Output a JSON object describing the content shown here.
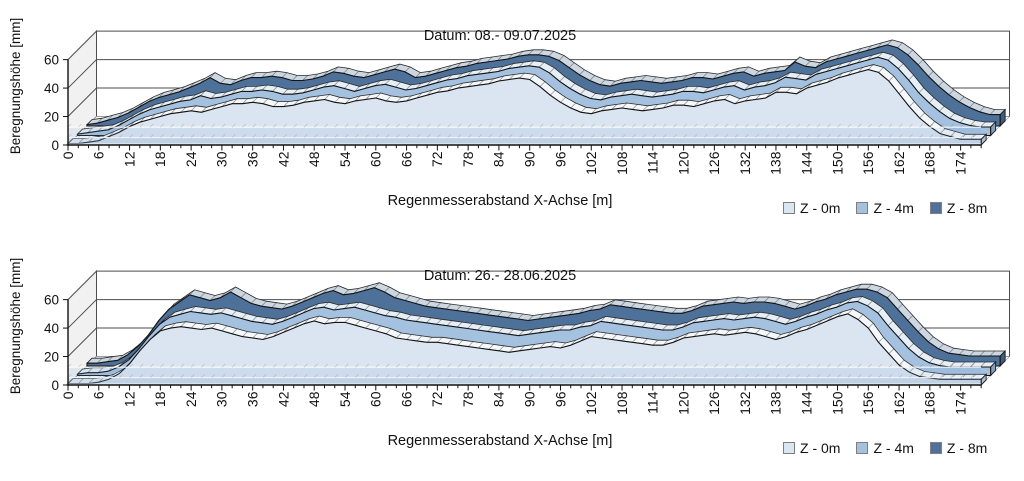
{
  "page": {
    "background": "#ffffff"
  },
  "chart_data": [
    {
      "type": "area",
      "view": "3d-depth",
      "title": "Datum: 08.- 09.07.2025",
      "xlabel": "Regenmesserabstand X-Achse [m]",
      "ylabel": "Beregnungshöhe [mm]",
      "x_start": 0,
      "x_step": 2,
      "x_end": 178,
      "x_tick_step": 6,
      "x_tick_max": 174,
      "y_ticks": [
        0,
        20,
        40,
        60
      ],
      "ylim": [
        0,
        60
      ],
      "grid": "horizontal-major",
      "legend_position": "bottom-right",
      "series": [
        {
          "name": "Z - 0m",
          "color": "#dbe5f1",
          "values": [
            1,
            1,
            2,
            3,
            6,
            9,
            13,
            16,
            18,
            20,
            22,
            23,
            24,
            23,
            25,
            27,
            29,
            29,
            30,
            29,
            27,
            27,
            28,
            30,
            31,
            32,
            30,
            29,
            31,
            32,
            33,
            31,
            30,
            31,
            33,
            35,
            37,
            38,
            40,
            41,
            42,
            43,
            45,
            46,
            47,
            46,
            41,
            35,
            30,
            26,
            23,
            22,
            24,
            25,
            26,
            25,
            24,
            25,
            26,
            28,
            28,
            27,
            29,
            31,
            32,
            29,
            31,
            32,
            33,
            37,
            37,
            36,
            40,
            42,
            44,
            47,
            49,
            51,
            53,
            51,
            45,
            36,
            27,
            19,
            13,
            8,
            6,
            4,
            4,
            4
          ]
        },
        {
          "name": "Z - 4m",
          "color": "#a4c2e0",
          "values": [
            1,
            2,
            3,
            4,
            7,
            11,
            15,
            18,
            20,
            22,
            24,
            25,
            28,
            26,
            27,
            29,
            31,
            31,
            32,
            31,
            29,
            29,
            30,
            32,
            34,
            35,
            33,
            31,
            33,
            35,
            36,
            34,
            32,
            33,
            35,
            37,
            39,
            40,
            42,
            43,
            44,
            45,
            47,
            48,
            49,
            48,
            44,
            38,
            33,
            29,
            26,
            25,
            27,
            28,
            29,
            28,
            27,
            28,
            29,
            31,
            31,
            30,
            32,
            34,
            35,
            32,
            34,
            35,
            37,
            41,
            40,
            39,
            43,
            45,
            47,
            49,
            51,
            53,
            55,
            53,
            47,
            39,
            30,
            23,
            17,
            12,
            9,
            7,
            6,
            6
          ]
        },
        {
          "name": "Z - 8m",
          "color": "#4d7199",
          "values": [
            1,
            2,
            4,
            6,
            9,
            13,
            17,
            20,
            22,
            24,
            27,
            30,
            34,
            30,
            29,
            32,
            34,
            34,
            35,
            34,
            32,
            32,
            33,
            35,
            38,
            37,
            35,
            34,
            36,
            38,
            40,
            38,
            34,
            35,
            37,
            39,
            41,
            42,
            44,
            45,
            46,
            47,
            49,
            50,
            50,
            49,
            46,
            41,
            36,
            32,
            29,
            28,
            30,
            31,
            32,
            31,
            30,
            31,
            32,
            34,
            34,
            33,
            35,
            37,
            38,
            35,
            37,
            38,
            39,
            45,
            42,
            41,
            45,
            47,
            49,
            51,
            53,
            55,
            57,
            55,
            50,
            43,
            35,
            28,
            22,
            17,
            13,
            10,
            8,
            8
          ]
        }
      ]
    },
    {
      "type": "area",
      "view": "3d-depth",
      "title": "Datum: 26.- 28.06.2025",
      "xlabel": "Regenmesserabstand X-Achse [m]",
      "ylabel": "Beregnungshöhe [mm]",
      "x_start": 0,
      "x_step": 2,
      "x_end": 178,
      "x_tick_step": 6,
      "x_tick_max": 174,
      "y_ticks": [
        0,
        20,
        40,
        60
      ],
      "ylim": [
        0,
        60
      ],
      "grid": "horizontal-major",
      "legend_position": "bottom-right",
      "series": [
        {
          "name": "Z - 0m",
          "color": "#dbe5f1",
          "values": [
            1,
            1,
            1,
            2,
            4,
            8,
            15,
            24,
            32,
            38,
            40,
            41,
            40,
            39,
            40,
            38,
            36,
            34,
            33,
            32,
            34,
            37,
            40,
            43,
            45,
            43,
            44,
            44,
            42,
            40,
            38,
            36,
            33,
            32,
            31,
            30,
            30,
            29,
            28,
            27,
            26,
            25,
            24,
            23,
            24,
            25,
            26,
            27,
            26,
            28,
            31,
            34,
            33,
            32,
            31,
            30,
            29,
            28,
            28,
            30,
            33,
            34,
            35,
            36,
            35,
            36,
            37,
            36,
            34,
            32,
            34,
            37,
            39,
            42,
            45,
            48,
            50,
            46,
            40,
            30,
            22,
            14,
            9,
            6,
            5,
            4,
            4,
            4,
            4,
            4
          ]
        },
        {
          "name": "Z - 4m",
          "color": "#a4c2e0",
          "values": [
            1,
            2,
            2,
            3,
            6,
            11,
            19,
            28,
            36,
            41,
            43,
            45,
            44,
            43,
            44,
            42,
            40,
            38,
            37,
            36,
            38,
            41,
            44,
            47,
            48,
            46,
            47,
            48,
            46,
            44,
            42,
            41,
            39,
            38,
            37,
            36,
            35,
            34,
            33,
            32,
            31,
            30,
            29,
            28,
            29,
            30,
            31,
            32,
            32,
            34,
            35,
            38,
            37,
            36,
            35,
            34,
            33,
            32,
            32,
            34,
            37,
            38,
            39,
            40,
            39,
            40,
            41,
            40,
            38,
            36,
            38,
            41,
            43,
            46,
            48,
            51,
            52,
            49,
            44,
            35,
            27,
            19,
            13,
            9,
            7,
            6,
            6,
            6,
            6,
            6
          ]
        },
        {
          "name": "Z - 8m",
          "color": "#4d7199",
          "values": [
            2,
            2,
            3,
            4,
            8,
            14,
            22,
            32,
            40,
            45,
            50,
            48,
            46,
            48,
            52,
            48,
            44,
            42,
            41,
            40,
            42,
            45,
            48,
            51,
            53,
            50,
            51,
            53,
            55,
            52,
            48,
            46,
            44,
            42,
            41,
            40,
            39,
            38,
            37,
            36,
            35,
            34,
            33,
            32,
            33,
            34,
            35,
            36,
            37,
            39,
            40,
            43,
            42,
            41,
            40,
            39,
            38,
            37,
            37,
            39,
            42,
            43,
            44,
            45,
            44,
            45,
            45,
            44,
            42,
            40,
            42,
            45,
            47,
            50,
            52,
            54,
            54,
            52,
            48,
            40,
            32,
            24,
            17,
            12,
            9,
            8,
            7,
            7,
            7,
            7
          ]
        }
      ]
    }
  ]
}
